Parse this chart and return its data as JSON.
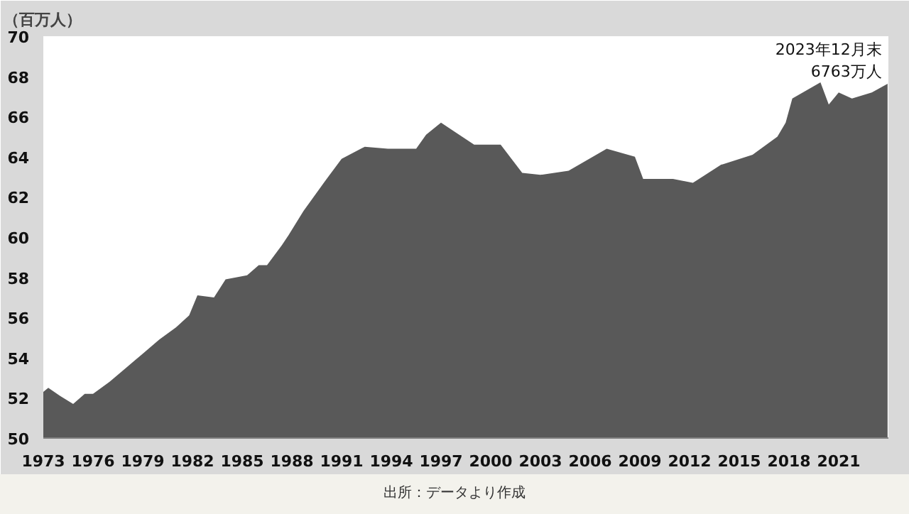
{
  "chart_data": {
    "type": "area",
    "ylabel": "（百万人）",
    "color": "#595959",
    "x": [
      1973,
      1973.3,
      1974,
      1974.8,
      1975.5,
      1976,
      1977,
      1978,
      1979,
      1980,
      1981,
      1981.8,
      1982.3,
      1983.3,
      1984,
      1985.3,
      1986,
      1986.5,
      1987.4,
      1987.8,
      1988.7,
      1990.1,
      1991,
      1992.4,
      1993.8,
      1995.5,
      1996.1,
      1997,
      1997.9,
      1999,
      2000.6,
      2001.9,
      2003,
      2004.7,
      2007,
      2008.7,
      2009.2,
      2011,
      2012.2,
      2013.9,
      2015.8,
      2017.3,
      2017.8,
      2018.2,
      2019.9,
      2020.4,
      2021,
      2021.8,
      2023,
      2023.95
    ],
    "values": [
      52.3,
      52.5,
      52.1,
      51.7,
      52.2,
      52.2,
      52.8,
      53.5,
      54.2,
      54.9,
      55.5,
      56.1,
      57.1,
      57.0,
      57.9,
      58.1,
      58.6,
      58.6,
      59.6,
      60.1,
      61.3,
      62.9,
      63.9,
      64.5,
      64.4,
      64.4,
      65.1,
      65.7,
      65.2,
      64.6,
      64.6,
      63.2,
      63.1,
      63.3,
      64.4,
      64.0,
      62.9,
      62.9,
      62.7,
      63.6,
      64.1,
      65.0,
      65.7,
      66.9,
      67.7,
      66.6,
      67.2,
      66.9,
      67.2,
      67.63
    ],
    "xlim": [
      1973,
      2024
    ],
    "xticks": [
      1973,
      1976,
      1979,
      1982,
      1985,
      1988,
      1991,
      1994,
      1997,
      2000,
      2003,
      2006,
      2009,
      2012,
      2015,
      2018,
      2021
    ],
    "ylim": [
      50,
      70
    ],
    "yticks": [
      50,
      52,
      54,
      56,
      58,
      60,
      62,
      64,
      66,
      68,
      70
    ],
    "grid": false,
    "annotations": [
      {
        "text": "2023年12月末\n6763万人",
        "x": 2023.95,
        "y": 67.63
      },
      "出所：データより作成"
    ]
  }
}
